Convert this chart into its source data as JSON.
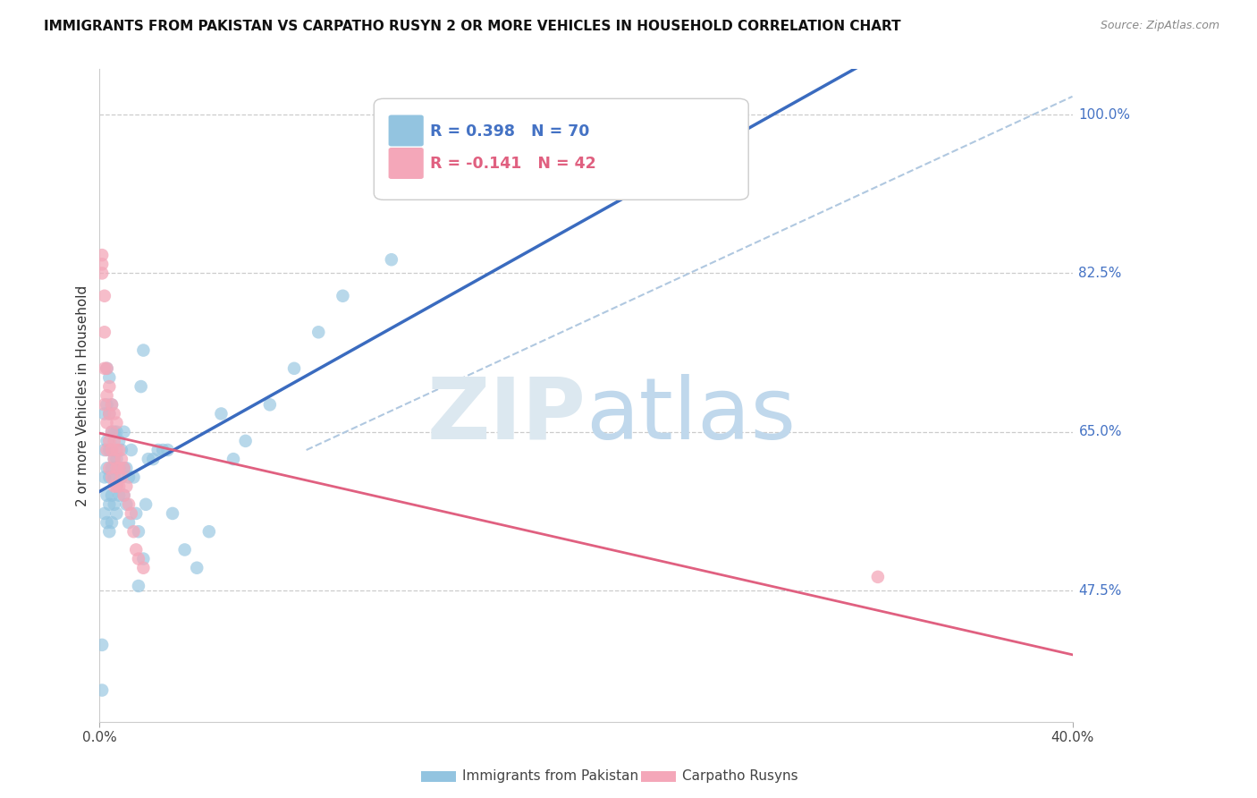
{
  "title": "IMMIGRANTS FROM PAKISTAN VS CARPATHO RUSYN 2 OR MORE VEHICLES IN HOUSEHOLD CORRELATION CHART",
  "source": "Source: ZipAtlas.com",
  "ylabel": "2 or more Vehicles in Household",
  "ytick_labels": [
    "100.0%",
    "82.5%",
    "65.0%",
    "47.5%"
  ],
  "ytick_values": [
    1.0,
    0.825,
    0.65,
    0.475
  ],
  "right_ytick_labels": [
    "100.0%",
    "82.5%",
    "65.0%",
    "47.5%"
  ],
  "xmin": 0.0,
  "xmax": 0.4,
  "ymin": 0.33,
  "ymax": 1.05,
  "blue_R": 0.398,
  "blue_N": 70,
  "pink_R": -0.141,
  "pink_N": 42,
  "blue_color": "#93c4e0",
  "pink_color": "#f4a7b9",
  "blue_line_color": "#3a6bbf",
  "pink_line_color": "#e06080",
  "dashed_line_color": "#b0c8e0",
  "legend_label_blue": "Immigrants from Pakistan",
  "legend_label_pink": "Carpatho Rusyns",
  "blue_x": [
    0.001,
    0.001,
    0.002,
    0.002,
    0.002,
    0.002,
    0.003,
    0.003,
    0.003,
    0.003,
    0.003,
    0.003,
    0.004,
    0.004,
    0.004,
    0.004,
    0.004,
    0.004,
    0.005,
    0.005,
    0.005,
    0.005,
    0.005,
    0.005,
    0.006,
    0.006,
    0.006,
    0.006,
    0.007,
    0.007,
    0.007,
    0.007,
    0.008,
    0.008,
    0.008,
    0.009,
    0.009,
    0.01,
    0.01,
    0.01,
    0.011,
    0.011,
    0.012,
    0.012,
    0.013,
    0.014,
    0.015,
    0.016,
    0.017,
    0.018,
    0.019,
    0.02,
    0.022,
    0.024,
    0.026,
    0.028,
    0.03,
    0.035,
    0.04,
    0.045,
    0.05,
    0.055,
    0.06,
    0.07,
    0.08,
    0.09,
    0.1,
    0.12,
    0.018,
    0.016
  ],
  "blue_y": [
    0.365,
    0.415,
    0.56,
    0.6,
    0.63,
    0.67,
    0.55,
    0.58,
    0.61,
    0.64,
    0.68,
    0.72,
    0.54,
    0.57,
    0.6,
    0.63,
    0.67,
    0.71,
    0.55,
    0.58,
    0.61,
    0.63,
    0.65,
    0.68,
    0.57,
    0.6,
    0.62,
    0.65,
    0.56,
    0.59,
    0.62,
    0.65,
    0.58,
    0.61,
    0.64,
    0.6,
    0.63,
    0.58,
    0.61,
    0.65,
    0.57,
    0.61,
    0.55,
    0.6,
    0.63,
    0.6,
    0.56,
    0.54,
    0.7,
    0.74,
    0.57,
    0.62,
    0.62,
    0.63,
    0.63,
    0.63,
    0.56,
    0.52,
    0.5,
    0.54,
    0.67,
    0.62,
    0.64,
    0.68,
    0.72,
    0.76,
    0.8,
    0.84,
    0.51,
    0.48
  ],
  "pink_x": [
    0.001,
    0.001,
    0.001,
    0.002,
    0.002,
    0.002,
    0.002,
    0.003,
    0.003,
    0.003,
    0.003,
    0.004,
    0.004,
    0.004,
    0.004,
    0.005,
    0.005,
    0.005,
    0.005,
    0.006,
    0.006,
    0.006,
    0.006,
    0.007,
    0.007,
    0.007,
    0.007,
    0.008,
    0.008,
    0.008,
    0.009,
    0.009,
    0.01,
    0.01,
    0.011,
    0.012,
    0.013,
    0.014,
    0.015,
    0.016,
    0.018,
    0.32
  ],
  "pink_y": [
    0.825,
    0.835,
    0.845,
    0.68,
    0.72,
    0.76,
    0.8,
    0.63,
    0.66,
    0.69,
    0.72,
    0.61,
    0.64,
    0.67,
    0.7,
    0.6,
    0.63,
    0.65,
    0.68,
    0.59,
    0.62,
    0.64,
    0.67,
    0.59,
    0.61,
    0.63,
    0.66,
    0.59,
    0.61,
    0.63,
    0.6,
    0.62,
    0.58,
    0.61,
    0.59,
    0.57,
    0.56,
    0.54,
    0.52,
    0.51,
    0.5,
    0.49
  ]
}
